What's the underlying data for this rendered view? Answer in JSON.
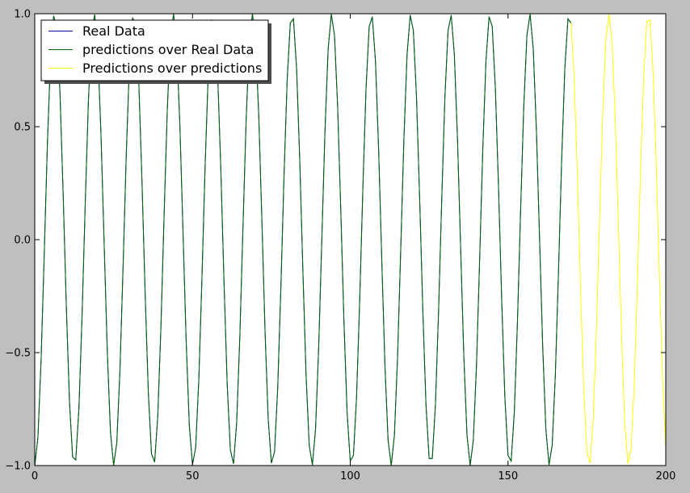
{
  "figure": {
    "background": "#bfbfbf",
    "axes_background": "#ffffff"
  },
  "chart_data": {
    "type": "line",
    "title": "",
    "xlabel": "",
    "ylabel": "",
    "xlim": [
      0,
      200
    ],
    "ylim": [
      -1.0,
      1.0
    ],
    "x_ticks": [
      0,
      50,
      100,
      150,
      200
    ],
    "x_tick_labels": [
      "0",
      "50",
      "100",
      "150",
      "200"
    ],
    "y_ticks": [
      1.0,
      0.5,
      0.0,
      -0.5,
      -1.0
    ],
    "y_tick_labels": [
      "1.0",
      "0.5",
      "0.0",
      "−0.5",
      "−1.0"
    ],
    "grid": false,
    "legend_position": "top-left",
    "signal": {
      "function": "sine",
      "amplitude": 1.0,
      "period": 12.55,
      "phase_at_x0": -1.5708,
      "sample_step": 1
    },
    "series": [
      {
        "name": "Real Data",
        "color": "#0000aa",
        "x_range": [
          0,
          170
        ]
      },
      {
        "name": "predictions over Real Data",
        "color": "#006400",
        "x_range": [
          0,
          170
        ]
      },
      {
        "name": "Predictions over predictions",
        "color": "#ffff00",
        "x_range": [
          170,
          200
        ]
      }
    ]
  }
}
